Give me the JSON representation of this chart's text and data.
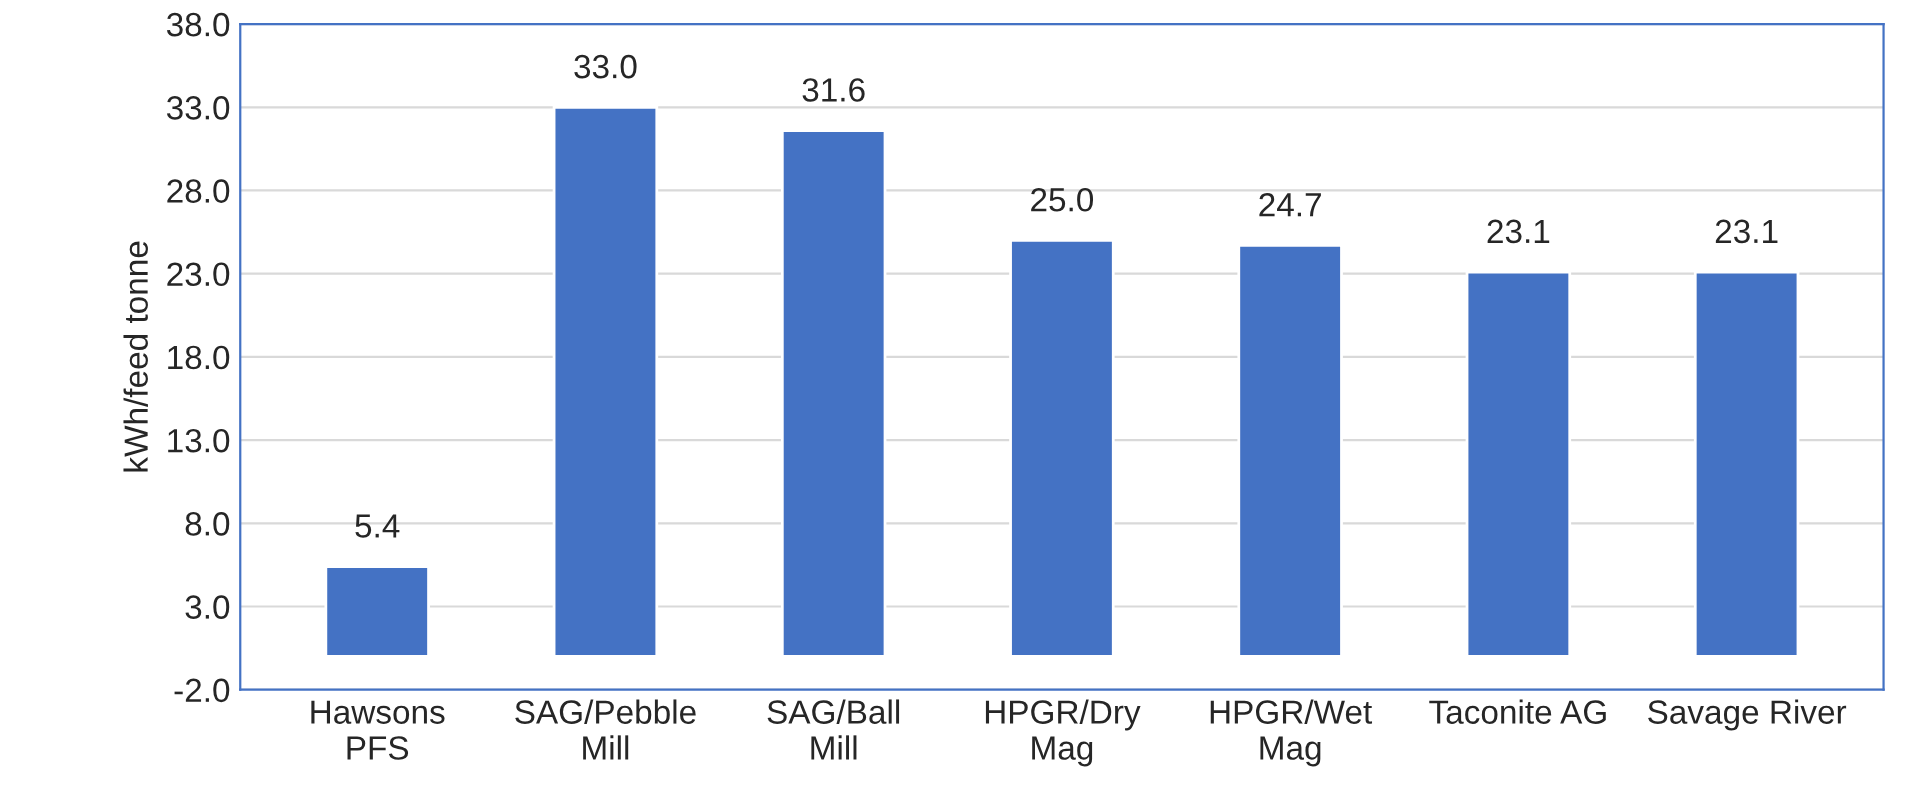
{
  "chart_data": {
    "type": "bar",
    "ylabel": "kWh/feed tonne",
    "categories": [
      "Hawsons\nPFS",
      "SAG/Pebble\nMill",
      "SAG/Ball\nMill",
      "HPGR/Dry\nMag",
      "HPGR/Wet\nMag",
      "Taconite AG",
      "Savage River"
    ],
    "values": [
      5.4,
      33.0,
      31.6,
      25.0,
      24.7,
      23.1,
      23.1
    ],
    "value_labels": [
      "5.4",
      "33.0",
      "31.6",
      "25.0",
      "24.7",
      "23.1",
      "23.1"
    ],
    "color": "#4472c4",
    "ylim": [
      -2.0,
      38.0
    ],
    "yticks": [
      {
        "value": -2,
        "label": "-2.0"
      },
      {
        "value": 3,
        "label": "3.0"
      },
      {
        "value": 8,
        "label": "8.0"
      },
      {
        "value": 13,
        "label": "13.0"
      },
      {
        "value": 18,
        "label": "18.0"
      },
      {
        "value": 23,
        "label": "23.0"
      },
      {
        "value": 28,
        "label": "28.0"
      },
      {
        "value": 33,
        "label": "33.0"
      },
      {
        "value": 38,
        "label": "38.0"
      }
    ],
    "grid": "y"
  }
}
